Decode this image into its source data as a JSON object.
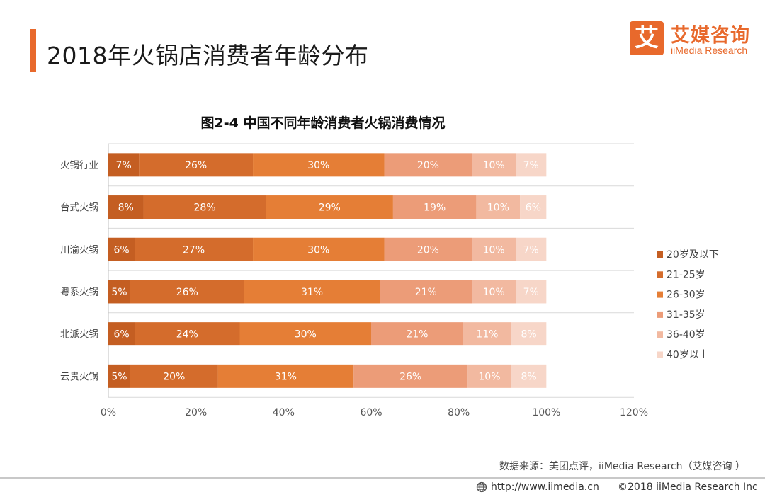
{
  "header": {
    "title": "2018年火锅店消费者年龄分布",
    "logo_mark": "艾",
    "logo_cn": "艾媒咨询",
    "logo_en": "iiMedia Research"
  },
  "chart_data": {
    "type": "bar",
    "orientation": "horizontal",
    "stacked": true,
    "title": "图2-4 中国不同年龄消费者火锅消费情况",
    "categories": [
      "火锅行业",
      "台式火锅",
      "川渝火锅",
      "粤系火锅",
      "北派火锅",
      "云贵火锅"
    ],
    "series": [
      {
        "name": "20岁及以下",
        "values": [
          7,
          8,
          6,
          5,
          6,
          5
        ]
      },
      {
        "name": "21-25岁",
        "values": [
          26,
          28,
          27,
          26,
          24,
          20
        ]
      },
      {
        "name": "26-30岁",
        "values": [
          30,
          29,
          30,
          31,
          30,
          31
        ]
      },
      {
        "name": "31-35岁",
        "values": [
          20,
          19,
          20,
          21,
          21,
          26
        ]
      },
      {
        "name": "36-40岁",
        "values": [
          10,
          10,
          10,
          10,
          11,
          10
        ]
      },
      {
        "name": "40岁以上",
        "values": [
          7,
          6,
          7,
          7,
          8,
          8
        ]
      }
    ],
    "colors": [
      "#c45e22",
      "#d46c2c",
      "#e57e36",
      "#ec9c78",
      "#f2b9a0",
      "#f7d6c8"
    ],
    "xlim": [
      0,
      120
    ],
    "xticks": [
      "0%",
      "20%",
      "40%",
      "60%",
      "80%",
      "100%",
      "120%"
    ],
    "value_suffix": "%",
    "legend_position": "right",
    "grid": true
  },
  "footer": {
    "source": "数据来源：美团点评，iiMedia Research（艾媒咨询 ）",
    "url": "http://www.iimedia.cn",
    "copyright": "©2018  iiMedia Research Inc"
  }
}
